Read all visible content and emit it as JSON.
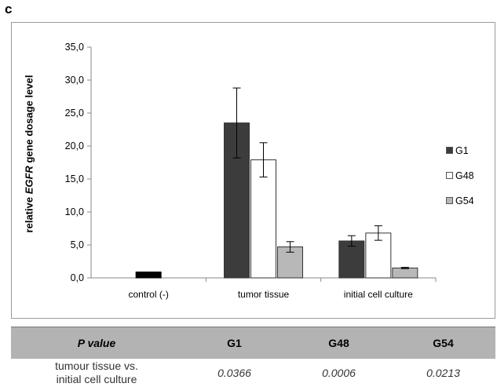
{
  "panel_label": "c",
  "chart_data": {
    "type": "bar",
    "ylabel": "relative EGFR gene dosage level",
    "ylabel_parts": [
      "relative ",
      "EGFR",
      " gene dosage level"
    ],
    "ylim": [
      0,
      35
    ],
    "yticks": [
      "0,0",
      "5,0",
      "10,0",
      "15,0",
      "20,0",
      "25,0",
      "30,0",
      "35,0"
    ],
    "categories": [
      "control (-)",
      "tumor tissue",
      "initial cell culture"
    ],
    "legend_position": "right",
    "control": {
      "value": 0.9,
      "color": "#000000"
    },
    "series": [
      {
        "name": "G1",
        "color": "#3c3c3c",
        "values": [
          null,
          23.5,
          5.6
        ],
        "errors": [
          null,
          5.3,
          0.8
        ]
      },
      {
        "name": "G48",
        "color": "#ffffff",
        "values": [
          null,
          17.9,
          6.8
        ],
        "errors": [
          null,
          2.6,
          1.1
        ]
      },
      {
        "name": "G54",
        "color": "#b8b8b8",
        "values": [
          null,
          4.7,
          1.5
        ],
        "errors": [
          null,
          0.8,
          0.1
        ]
      }
    ]
  },
  "table": {
    "headers": [
      "P value",
      "G1",
      "G48",
      "G54"
    ],
    "row_label_lines": [
      "tumour tissue vs.",
      "initial cell culture"
    ],
    "values": [
      "0.0366",
      "0.0006",
      "0.0213"
    ]
  }
}
